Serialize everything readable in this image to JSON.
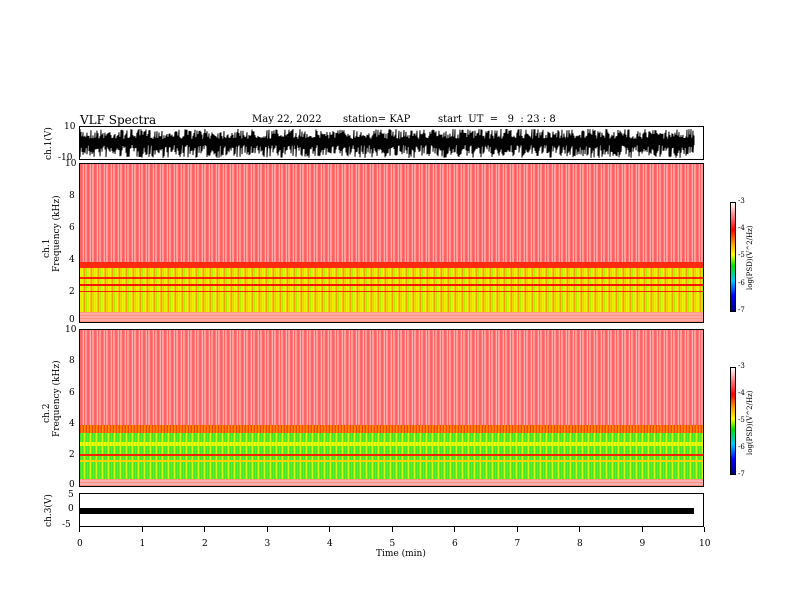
{
  "header": {
    "title": "VLF Spectra",
    "date": "May 22, 2022",
    "station": "station= KAP",
    "start": "start  UT  =   9  : 23 : 8"
  },
  "colors": {
    "trace": "#000000",
    "high_power": "#ff0000",
    "mid_power": "#ffff00",
    "low_power": "#00e000"
  },
  "chart_data": [
    {
      "type": "line",
      "ylabel": "ch.1(V)",
      "ylim": [
        -10,
        10
      ],
      "yticks": [
        "10",
        "-10"
      ],
      "series": [
        {
          "values": []
        }
      ]
    },
    {
      "type": "heatmap",
      "ylabel_top": "ch.1",
      "ylabel": "Frequency (kHz)",
      "ylim": [
        0,
        10
      ],
      "yticks": [
        "10",
        "8",
        "6",
        "4",
        "2",
        "0"
      ],
      "colorbar": {
        "label": "log(PSD)(V^2/Hz)",
        "range": [
          -7,
          -3
        ],
        "ticks": [
          "-3",
          "-4",
          "-5",
          "-6",
          "-7"
        ]
      },
      "bands": [
        {
          "from": 0,
          "to": 1,
          "level": "mixed-yellow-green"
        },
        {
          "from": 1,
          "to": 3.5,
          "level": "yellow-green"
        },
        {
          "from": 3.5,
          "to": 4,
          "level": "red-yellow"
        },
        {
          "from": 4,
          "to": 10,
          "level": "red-white"
        }
      ]
    },
    {
      "type": "heatmap",
      "ylabel_top": "ch.2",
      "ylabel": "Frequency (kHz)",
      "ylim": [
        0,
        10
      ],
      "yticks": [
        "10",
        "8",
        "6",
        "4",
        "2",
        "0"
      ],
      "colorbar": {
        "label": "log(PSD)(V^2/Hz)",
        "range": [
          -7,
          -3
        ],
        "ticks": [
          "-3",
          "-4",
          "-5",
          "-6",
          "-7"
        ]
      },
      "bands": [
        {
          "from": 0,
          "to": 1,
          "level": "mixed-yellow-green"
        },
        {
          "from": 1,
          "to": 3.3,
          "level": "green-yellow"
        },
        {
          "from": 3.3,
          "to": 4,
          "level": "red-yellow"
        },
        {
          "from": 4,
          "to": 10,
          "level": "red-white"
        }
      ]
    },
    {
      "type": "line",
      "ylabel": "ch.3(V)",
      "ylim": [
        -5,
        5
      ],
      "yticks": [
        "5",
        "0",
        "-5"
      ],
      "series": [
        {
          "values": []
        }
      ]
    }
  ],
  "xaxis": {
    "label": "Time (min)",
    "range": [
      0,
      10
    ],
    "ticks": [
      "0",
      "1",
      "2",
      "3",
      "4",
      "5",
      "6",
      "7",
      "8",
      "9",
      "10"
    ]
  }
}
